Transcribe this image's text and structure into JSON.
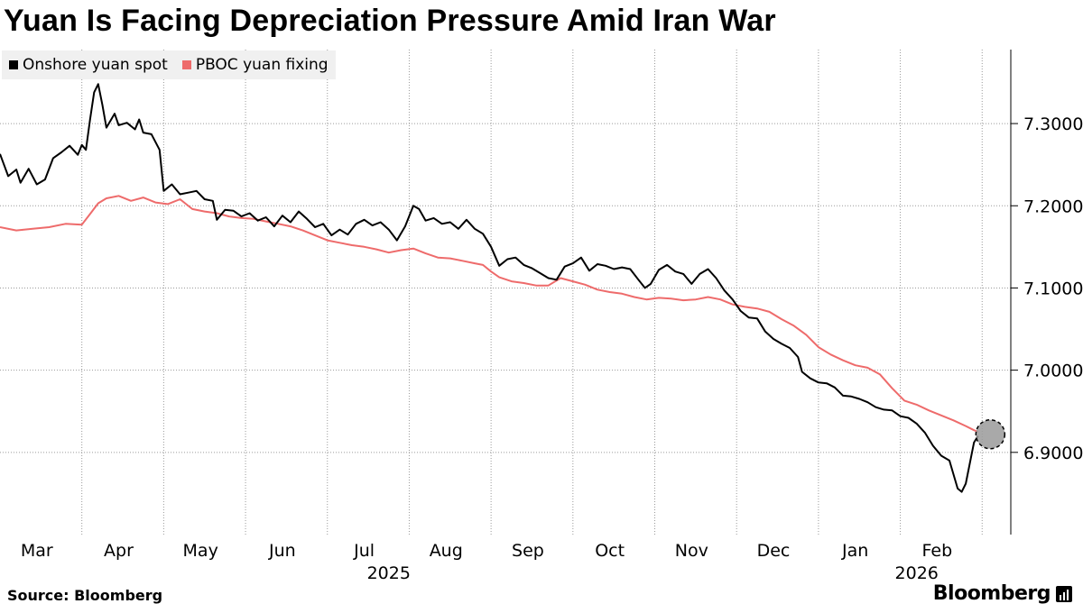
{
  "title": "Yuan Is Facing Depreciation Pressure Amid Iran War",
  "source": "Source: Bloomberg",
  "brand": "Bloomberg",
  "colors": {
    "spot": "#000000",
    "fixing": "#ee6b6b",
    "grid": "#9a9a9a",
    "marker": "#9a9a9a"
  },
  "chart_data": {
    "type": "line",
    "title": "Yuan Is Facing Depreciation Pressure Amid Iran War",
    "xlabel": "",
    "ylabel": "",
    "ylim": [
      6.8,
      7.39
    ],
    "xlim": [
      0,
      12.35
    ],
    "y_ticks": [
      6.9,
      7.0,
      7.1,
      7.2,
      7.3
    ],
    "y_tick_labels": [
      "6.9000",
      "7.0000",
      "7.1000",
      "7.2000",
      "7.3000"
    ],
    "month_labels": [
      "Mar",
      "Apr",
      "May",
      "Jun",
      "Jul",
      "Aug",
      "Sep",
      "Oct",
      "Nov",
      "Dec",
      "Jan",
      "Feb"
    ],
    "year_labels": [
      {
        "label": "2025",
        "at_month": 4.75
      },
      {
        "label": "2026",
        "at_month": 11.2
      }
    ],
    "legend": {
      "position": "top-left",
      "entries": [
        "Onshore yuan spot",
        "PBOC yuan fixing"
      ]
    },
    "annotation": {
      "type": "circle-marker",
      "x": 12.1,
      "y": 6.922
    },
    "series": [
      {
        "name": "Onshore yuan spot",
        "color": "#000000",
        "points": [
          [
            0.0,
            7.263
          ],
          [
            0.1,
            7.236
          ],
          [
            0.2,
            7.244
          ],
          [
            0.25,
            7.228
          ],
          [
            0.35,
            7.245
          ],
          [
            0.45,
            7.226
          ],
          [
            0.55,
            7.232
          ],
          [
            0.65,
            7.258
          ],
          [
            0.75,
            7.265
          ],
          [
            0.85,
            7.273
          ],
          [
            0.95,
            7.262
          ],
          [
            1.0,
            7.274
          ],
          [
            1.05,
            7.268
          ],
          [
            1.1,
            7.305
          ],
          [
            1.15,
            7.338
          ],
          [
            1.2,
            7.348
          ],
          [
            1.25,
            7.323
          ],
          [
            1.3,
            7.295
          ],
          [
            1.4,
            7.312
          ],
          [
            1.45,
            7.298
          ],
          [
            1.55,
            7.301
          ],
          [
            1.65,
            7.293
          ],
          [
            1.7,
            7.305
          ],
          [
            1.75,
            7.289
          ],
          [
            1.85,
            7.287
          ],
          [
            1.95,
            7.268
          ],
          [
            2.0,
            7.218
          ],
          [
            2.1,
            7.226
          ],
          [
            2.2,
            7.214
          ],
          [
            2.3,
            7.216
          ],
          [
            2.4,
            7.218
          ],
          [
            2.5,
            7.208
          ],
          [
            2.6,
            7.206
          ],
          [
            2.65,
            7.183
          ],
          [
            2.75,
            7.195
          ],
          [
            2.85,
            7.194
          ],
          [
            2.95,
            7.187
          ],
          [
            3.05,
            7.191
          ],
          [
            3.15,
            7.182
          ],
          [
            3.25,
            7.186
          ],
          [
            3.35,
            7.175
          ],
          [
            3.45,
            7.188
          ],
          [
            3.55,
            7.18
          ],
          [
            3.65,
            7.193
          ],
          [
            3.75,
            7.184
          ],
          [
            3.85,
            7.174
          ],
          [
            3.95,
            7.178
          ],
          [
            4.05,
            7.164
          ],
          [
            4.15,
            7.171
          ],
          [
            4.25,
            7.165
          ],
          [
            4.35,
            7.178
          ],
          [
            4.45,
            7.183
          ],
          [
            4.55,
            7.176
          ],
          [
            4.65,
            7.18
          ],
          [
            4.75,
            7.171
          ],
          [
            4.85,
            7.158
          ],
          [
            4.95,
            7.175
          ],
          [
            5.05,
            7.2
          ],
          [
            5.12,
            7.196
          ],
          [
            5.2,
            7.182
          ],
          [
            5.3,
            7.185
          ],
          [
            5.4,
            7.178
          ],
          [
            5.5,
            7.18
          ],
          [
            5.6,
            7.172
          ],
          [
            5.7,
            7.183
          ],
          [
            5.8,
            7.172
          ],
          [
            5.9,
            7.166
          ],
          [
            6.0,
            7.15
          ],
          [
            6.1,
            7.127
          ],
          [
            6.2,
            7.135
          ],
          [
            6.3,
            7.137
          ],
          [
            6.4,
            7.128
          ],
          [
            6.5,
            7.124
          ],
          [
            6.6,
            7.118
          ],
          [
            6.7,
            7.112
          ],
          [
            6.8,
            7.11
          ],
          [
            6.9,
            7.126
          ],
          [
            7.0,
            7.13
          ],
          [
            7.1,
            7.137
          ],
          [
            7.2,
            7.121
          ],
          [
            7.3,
            7.129
          ],
          [
            7.4,
            7.127
          ],
          [
            7.5,
            7.123
          ],
          [
            7.6,
            7.125
          ],
          [
            7.7,
            7.123
          ],
          [
            7.8,
            7.11
          ],
          [
            7.88,
            7.1
          ],
          [
            7.95,
            7.105
          ],
          [
            8.05,
            7.122
          ],
          [
            8.15,
            7.128
          ],
          [
            8.25,
            7.12
          ],
          [
            8.35,
            7.117
          ],
          [
            8.45,
            7.105
          ],
          [
            8.55,
            7.117
          ],
          [
            8.65,
            7.123
          ],
          [
            8.75,
            7.112
          ],
          [
            8.85,
            7.097
          ],
          [
            8.95,
            7.086
          ],
          [
            9.05,
            7.072
          ],
          [
            9.15,
            7.064
          ],
          [
            9.25,
            7.063
          ],
          [
            9.35,
            7.047
          ],
          [
            9.45,
            7.038
          ],
          [
            9.55,
            7.032
          ],
          [
            9.65,
            7.027
          ],
          [
            9.75,
            7.016
          ],
          [
            9.8,
            6.998
          ],
          [
            9.9,
            6.99
          ],
          [
            10.0,
            6.985
          ],
          [
            10.1,
            6.984
          ],
          [
            10.2,
            6.979
          ],
          [
            10.3,
            6.969
          ],
          [
            10.4,
            6.968
          ],
          [
            10.5,
            6.965
          ],
          [
            10.6,
            6.961
          ],
          [
            10.7,
            6.955
          ],
          [
            10.8,
            6.952
          ],
          [
            10.9,
            6.951
          ],
          [
            11.0,
            6.944
          ],
          [
            11.1,
            6.942
          ],
          [
            11.2,
            6.935
          ],
          [
            11.3,
            6.924
          ],
          [
            11.4,
            6.908
          ],
          [
            11.5,
            6.896
          ],
          [
            11.6,
            6.89
          ],
          [
            11.7,
            6.856
          ],
          [
            11.75,
            6.852
          ],
          [
            11.8,
            6.862
          ],
          [
            11.9,
            6.912
          ],
          [
            11.95,
            6.92
          ]
        ]
      },
      {
        "name": "PBOC yuan fixing",
        "color": "#ee6b6b",
        "points": [
          [
            0.0,
            7.174
          ],
          [
            0.2,
            7.17
          ],
          [
            0.4,
            7.172
          ],
          [
            0.6,
            7.174
          ],
          [
            0.8,
            7.178
          ],
          [
            1.0,
            7.177
          ],
          [
            1.1,
            7.19
          ],
          [
            1.2,
            7.203
          ],
          [
            1.3,
            7.209
          ],
          [
            1.45,
            7.212
          ],
          [
            1.6,
            7.206
          ],
          [
            1.75,
            7.21
          ],
          [
            1.9,
            7.204
          ],
          [
            2.05,
            7.202
          ],
          [
            2.2,
            7.208
          ],
          [
            2.35,
            7.196
          ],
          [
            2.5,
            7.193
          ],
          [
            2.65,
            7.191
          ],
          [
            2.8,
            7.187
          ],
          [
            2.95,
            7.185
          ],
          [
            3.1,
            7.184
          ],
          [
            3.25,
            7.181
          ],
          [
            3.4,
            7.178
          ],
          [
            3.55,
            7.175
          ],
          [
            3.7,
            7.17
          ],
          [
            3.85,
            7.164
          ],
          [
            4.0,
            7.158
          ],
          [
            4.15,
            7.155
          ],
          [
            4.3,
            7.152
          ],
          [
            4.45,
            7.15
          ],
          [
            4.6,
            7.147
          ],
          [
            4.75,
            7.143
          ],
          [
            4.9,
            7.146
          ],
          [
            5.05,
            7.148
          ],
          [
            5.2,
            7.142
          ],
          [
            5.35,
            7.137
          ],
          [
            5.5,
            7.136
          ],
          [
            5.65,
            7.133
          ],
          [
            5.8,
            7.13
          ],
          [
            5.9,
            7.128
          ],
          [
            6.0,
            7.12
          ],
          [
            6.1,
            7.113
          ],
          [
            6.25,
            7.108
          ],
          [
            6.4,
            7.106
          ],
          [
            6.55,
            7.103
          ],
          [
            6.7,
            7.103
          ],
          [
            6.85,
            7.112
          ],
          [
            7.0,
            7.108
          ],
          [
            7.15,
            7.104
          ],
          [
            7.3,
            7.098
          ],
          [
            7.45,
            7.095
          ],
          [
            7.6,
            7.093
          ],
          [
            7.75,
            7.089
          ],
          [
            7.9,
            7.086
          ],
          [
            8.05,
            7.088
          ],
          [
            8.2,
            7.087
          ],
          [
            8.35,
            7.085
          ],
          [
            8.5,
            7.086
          ],
          [
            8.65,
            7.089
          ],
          [
            8.8,
            7.086
          ],
          [
            8.95,
            7.08
          ],
          [
            9.1,
            7.077
          ],
          [
            9.25,
            7.075
          ],
          [
            9.4,
            7.071
          ],
          [
            9.55,
            7.062
          ],
          [
            9.7,
            7.054
          ],
          [
            9.85,
            7.043
          ],
          [
            10.0,
            7.028
          ],
          [
            10.15,
            7.019
          ],
          [
            10.3,
            7.012
          ],
          [
            10.45,
            7.006
          ],
          [
            10.6,
            7.003
          ],
          [
            10.75,
            6.995
          ],
          [
            10.9,
            6.978
          ],
          [
            11.05,
            6.963
          ],
          [
            11.2,
            6.958
          ],
          [
            11.35,
            6.951
          ],
          [
            11.5,
            6.945
          ],
          [
            11.65,
            6.939
          ],
          [
            11.8,
            6.932
          ],
          [
            11.9,
            6.927
          ],
          [
            11.95,
            6.925
          ]
        ]
      }
    ]
  }
}
